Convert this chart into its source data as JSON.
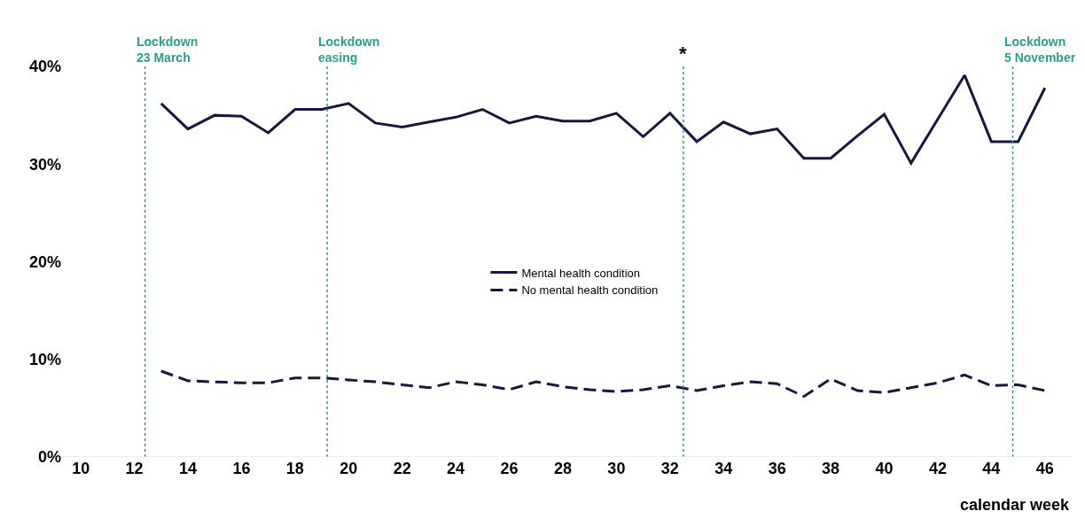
{
  "chart_data": {
    "type": "line",
    "xlabel": "calendar week",
    "x": [
      13,
      14,
      15,
      16,
      17,
      18,
      19,
      20,
      21,
      22,
      23,
      24,
      25,
      26,
      27,
      28,
      29,
      30,
      31,
      32,
      33,
      34,
      35,
      36,
      37,
      38,
      39,
      40,
      41,
      42,
      43,
      44,
      45,
      46
    ],
    "series": [
      {
        "name": "Mental health condition",
        "color": "#14193f",
        "line_style": "solid",
        "values": [
          36.2,
          33.6,
          35.0,
          34.9,
          33.2,
          35.6,
          35.6,
          36.2,
          34.2,
          33.8,
          34.3,
          34.8,
          35.6,
          34.2,
          34.9,
          34.4,
          34.4,
          35.2,
          32.8,
          35.2,
          32.3,
          34.3,
          33.1,
          33.6,
          30.6,
          30.6,
          32.9,
          35.1,
          30.1,
          34.6,
          39.1,
          32.3,
          32.3,
          37.8
        ]
      },
      {
        "name": "No mental health condition",
        "color": "#14193f",
        "line_style": "dashed",
        "values": [
          8.8,
          7.8,
          7.7,
          7.6,
          7.6,
          8.1,
          8.1,
          7.9,
          7.7,
          7.4,
          7.1,
          7.7,
          7.4,
          6.9,
          7.7,
          7.2,
          6.9,
          6.7,
          6.9,
          7.3,
          6.8,
          7.3,
          7.7,
          7.5,
          6.2,
          8.0,
          6.8,
          6.6,
          7.1,
          7.6,
          8.4,
          7.3,
          7.4,
          6.8
        ]
      }
    ],
    "xlim": [
      9.3,
      47
    ],
    "xticks": [
      10,
      12,
      14,
      16,
      18,
      20,
      22,
      24,
      26,
      28,
      30,
      32,
      34,
      36,
      38,
      40,
      42,
      44,
      46
    ],
    "ylim": [
      0,
      40
    ],
    "yticks": [
      {
        "value": 0,
        "label": "0%"
      },
      {
        "value": 10,
        "label": "10%"
      },
      {
        "value": 20,
        "label": "20%"
      },
      {
        "value": 30,
        "label": "30%"
      },
      {
        "value": 40,
        "label": "40%"
      }
    ],
    "ref_lines": [
      {
        "axis": "x",
        "value": 12.4,
        "label": "Lockdown\n23 March",
        "color": "#2a9d8f",
        "line_style": "dotted"
      },
      {
        "axis": "x",
        "value": 19.2,
        "label": "Lockdown\neasing",
        "color": "#2a9d8f",
        "line_style": "dotted"
      },
      {
        "axis": "x",
        "value": 32.5,
        "label": "*",
        "color": "#2a9d8f",
        "line_style": "dotted"
      },
      {
        "axis": "x",
        "value": 44.8,
        "label": "Lockdown\n5 November",
        "color": "#2a9d8f",
        "line_style": "dotted"
      }
    ],
    "legend": "center",
    "marker": "none"
  }
}
